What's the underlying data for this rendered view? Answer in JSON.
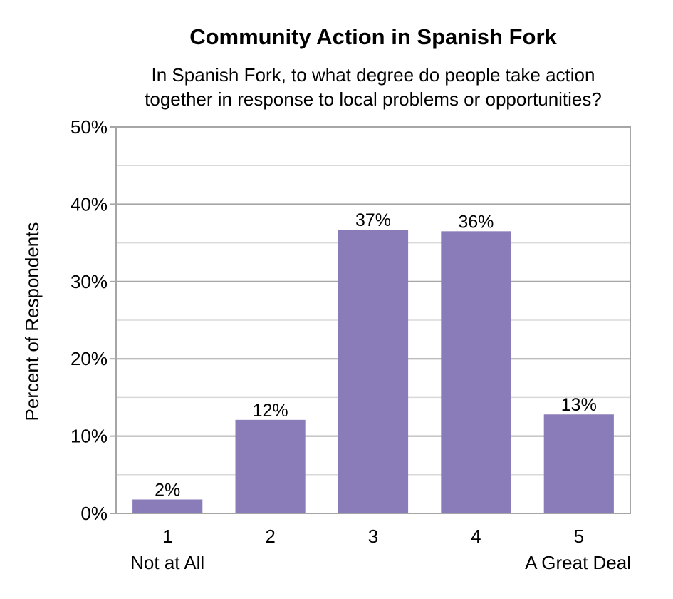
{
  "chart_data": {
    "type": "bar",
    "title": "Community Action in Spanish Fork",
    "subtitle_lines": [
      "In Spanish Fork, to what degree do people take action",
      "together in response to local problems or opportunities?"
    ],
    "ylabel": "Percent of Respondents",
    "xlabel": "",
    "categories": [
      "1",
      "2",
      "3",
      "4",
      "5"
    ],
    "category_sublabels": [
      "Not at All",
      "",
      "",
      "",
      "A Great Deal"
    ],
    "values": [
      1.8,
      12.1,
      36.7,
      36.5,
      12.8
    ],
    "data_labels": [
      "2%",
      "12%",
      "37%",
      "36%",
      "13%"
    ],
    "ylim": [
      0,
      50
    ],
    "y_ticks": [
      0,
      10,
      20,
      30,
      40,
      50
    ],
    "y_tick_labels": [
      "0%",
      "10%",
      "20%",
      "30%",
      "40%",
      "50%"
    ],
    "grid": true,
    "legend": "none",
    "colors": {
      "bar": "#8a7cb8",
      "major_grid": "#a6a6a6",
      "minor_grid": "#d9d9d9",
      "frame": "#a6a6a6"
    }
  }
}
